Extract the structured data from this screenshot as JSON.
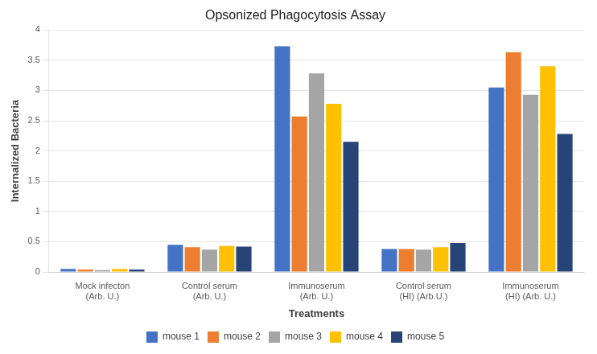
{
  "chart_data": {
    "type": "bar",
    "title": "Opsonized Phagocytosis Assay",
    "x_label": "Treatments",
    "y_label": "Internalized Bacteria",
    "categories": [
      "Mock infecton\n(Arb. U.)",
      "Control serum\n(Arb. U.)",
      "Immunoserum\n(Arb. U.)",
      "Control serum\n(HI) (Arb.U.)",
      "Immunoserum\n(HI) (Arb. U.)"
    ],
    "series": [
      {
        "name": "mouse 1",
        "color": "#4472C4",
        "values": [
          0.05,
          0.45,
          3.73,
          0.38,
          3.05
        ]
      },
      {
        "name": "mouse 2",
        "color": "#ED7D31",
        "values": [
          0.04,
          0.41,
          2.57,
          0.38,
          3.63
        ]
      },
      {
        "name": "mouse 3",
        "color": "#A5A5A5",
        "values": [
          0.03,
          0.37,
          3.28,
          0.37,
          2.93
        ]
      },
      {
        "name": "mouse 4",
        "color": "#FFC000",
        "values": [
          0.05,
          0.43,
          2.78,
          0.41,
          3.4
        ]
      },
      {
        "name": "mouse 5",
        "color": "#264478",
        "values": [
          0.04,
          0.42,
          2.15,
          0.48,
          2.28
        ]
      }
    ],
    "ylim": [
      0,
      4
    ],
    "yticks": [
      0,
      0.5,
      1,
      1.5,
      2,
      2.5,
      3,
      3.5,
      4
    ],
    "grid": true,
    "legend": "bottom"
  }
}
